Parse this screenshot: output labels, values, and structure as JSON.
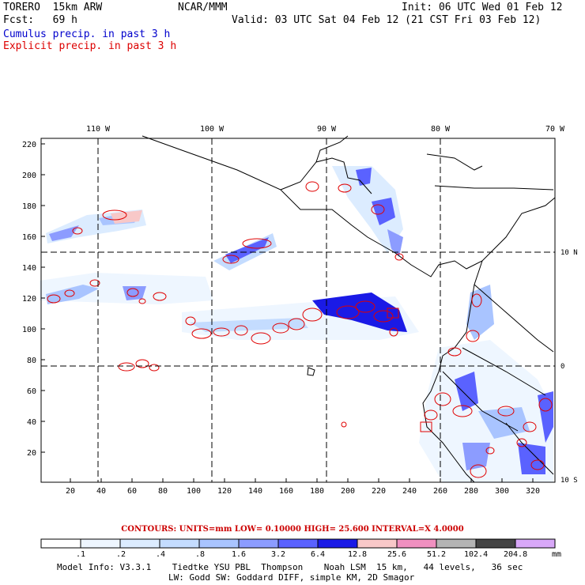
{
  "header": {
    "model": "TORERO  15km ARW",
    "org": "NCAR/MMM",
    "init": "Init: 06 UTC Wed 01 Feb 12",
    "fcst": "Fcst:   69 h",
    "valid": "Valid: 03 UTC Sat 04 Feb 12 (21 CST Fri 03 Feb 12)",
    "cumulus": "Cumulus precip. in past 3 h",
    "explicit": "Explicit precip. in past 3 h"
  },
  "colors": {
    "cumulus_title": "#0000cc",
    "explicit_title": "#dd0000",
    "contour": "#e00000"
  },
  "map": {
    "lon_labels": [
      "110 W",
      "100 W",
      "90 W",
      "80 W",
      "70 W"
    ],
    "lat_labels": [
      "10 N",
      "0",
      "10 S"
    ],
    "y_ticks": [
      "220",
      "200",
      "180",
      "160",
      "140",
      "120",
      "100",
      "80",
      "60",
      "40",
      "20"
    ],
    "x_ticks": [
      "20",
      "40",
      "60",
      "80",
      "100",
      "120",
      "140",
      "160",
      "180",
      "200",
      "220",
      "240",
      "260",
      "280",
      "300",
      "320"
    ]
  },
  "contours": {
    "text": "CONTOURS:  UNITS=mm  LOW= 0.10000      HIGH=  25.600      INTERVAL=X  4.0000"
  },
  "colorbar": {
    "labels": [
      ".1",
      ".2",
      ".4",
      ".8",
      "1.6",
      "3.2",
      "6.4",
      "12.8",
      "25.6",
      "51.2",
      "102.4",
      "204.8"
    ],
    "unit": "mm",
    "colors": [
      "#ffffff",
      "#eef6ff",
      "#dcecff",
      "#c4dcff",
      "#a9c4ff",
      "#8c9cff",
      "#5a62ff",
      "#1a1ae6",
      "#f8c8c8",
      "#f090c0",
      "#b4b4b4",
      "#444444",
      "#d8a8f8"
    ]
  },
  "footer": {
    "line1": "Model Info: V3.3.1    Tiedtke YSU PBL  Thompson    Noah LSM  15 km,   44 levels,   36 sec",
    "line2": "LW: Godd SW: Goddard DIFF, simple KM, 2D Smagor"
  }
}
